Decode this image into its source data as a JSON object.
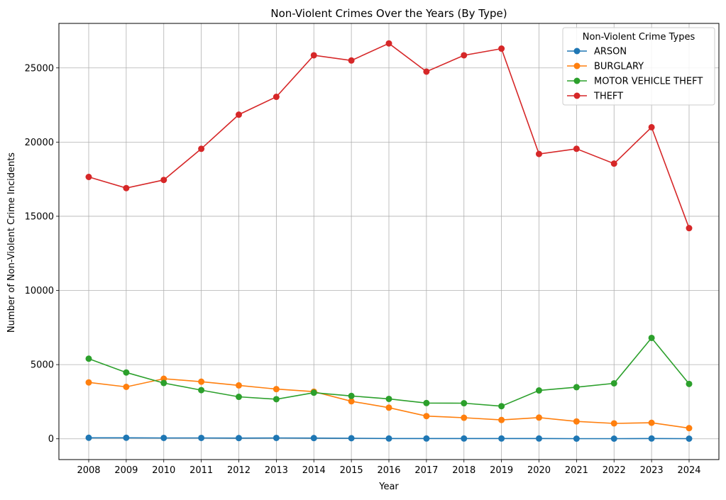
{
  "chart_data": {
    "type": "line",
    "title": "Non-Violent Crimes Over the Years (By Type)",
    "xlabel": "Year",
    "ylabel": "Number of Non-Violent Crime Incidents",
    "categories": [
      "2008",
      "2009",
      "2010",
      "2011",
      "2012",
      "2013",
      "2014",
      "2015",
      "2016",
      "2017",
      "2018",
      "2019",
      "2020",
      "2021",
      "2022",
      "2023",
      "2024"
    ],
    "yticks": [
      0,
      5000,
      10000,
      15000,
      20000,
      25000
    ],
    "ylim": [
      -1400,
      28000
    ],
    "grid": true,
    "legend": {
      "title": "Non-Violent Crime Types",
      "placement": "top-right"
    },
    "series": [
      {
        "name": "ARSON",
        "color": "#1f77b4",
        "values": [
          70,
          70,
          60,
          60,
          50,
          60,
          50,
          40,
          20,
          20,
          20,
          20,
          20,
          10,
          10,
          20,
          10
        ]
      },
      {
        "name": "BURGLARY",
        "color": "#ff7f0e",
        "values": [
          3800,
          3500,
          4050,
          3850,
          3600,
          3350,
          3180,
          2530,
          2100,
          1530,
          1420,
          1270,
          1430,
          1170,
          1040,
          1080,
          720
        ]
      },
      {
        "name": "MOTOR VEHICLE THEFT",
        "color": "#2ca02c",
        "values": [
          5400,
          4470,
          3760,
          3280,
          2830,
          2670,
          3110,
          2890,
          2690,
          2410,
          2400,
          2200,
          3260,
          3480,
          3740,
          6800,
          3700
        ]
      },
      {
        "name": "THEFT",
        "color": "#d62728",
        "values": [
          17650,
          16900,
          17450,
          19550,
          21850,
          23050,
          25850,
          25500,
          26650,
          24750,
          25850,
          26300,
          19200,
          19550,
          18550,
          21000,
          14200
        ]
      }
    ]
  }
}
